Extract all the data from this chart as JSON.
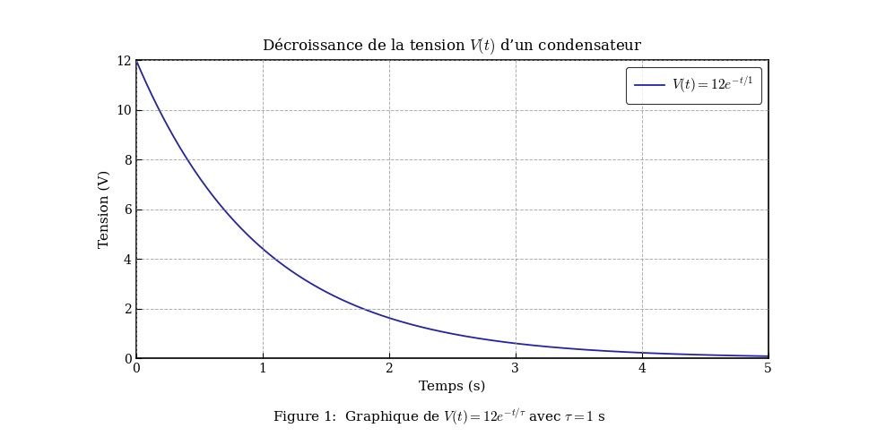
{
  "title": "Décroissance de la tension $V(t)$ d’un condensateur",
  "xlabel": "Temps (s)",
  "ylabel": "Tension (V)",
  "caption": "Figure 1:  Graphique de $V(t) = 12e^{-t/\\tau}$ avec $\\tau = 1$ s",
  "legend_label": "$V(t) = 12e^{-t/1}$",
  "V0": 12,
  "tau": 1,
  "t_start": 0,
  "t_end": 5,
  "xlim": [
    0,
    5
  ],
  "ylim": [
    0,
    12
  ],
  "xticks": [
    0,
    1,
    2,
    3,
    4,
    5
  ],
  "yticks": [
    0,
    2,
    4,
    6,
    8,
    10,
    12
  ],
  "line_color": "#2222aa",
  "line_width": 1.3,
  "grid_color": "#999999",
  "grid_style": "--",
  "grid_alpha": 0.8,
  "background_color": "#ffffff",
  "title_fontsize": 12,
  "label_fontsize": 11,
  "tick_fontsize": 10,
  "legend_fontsize": 11,
  "caption_fontsize": 11
}
